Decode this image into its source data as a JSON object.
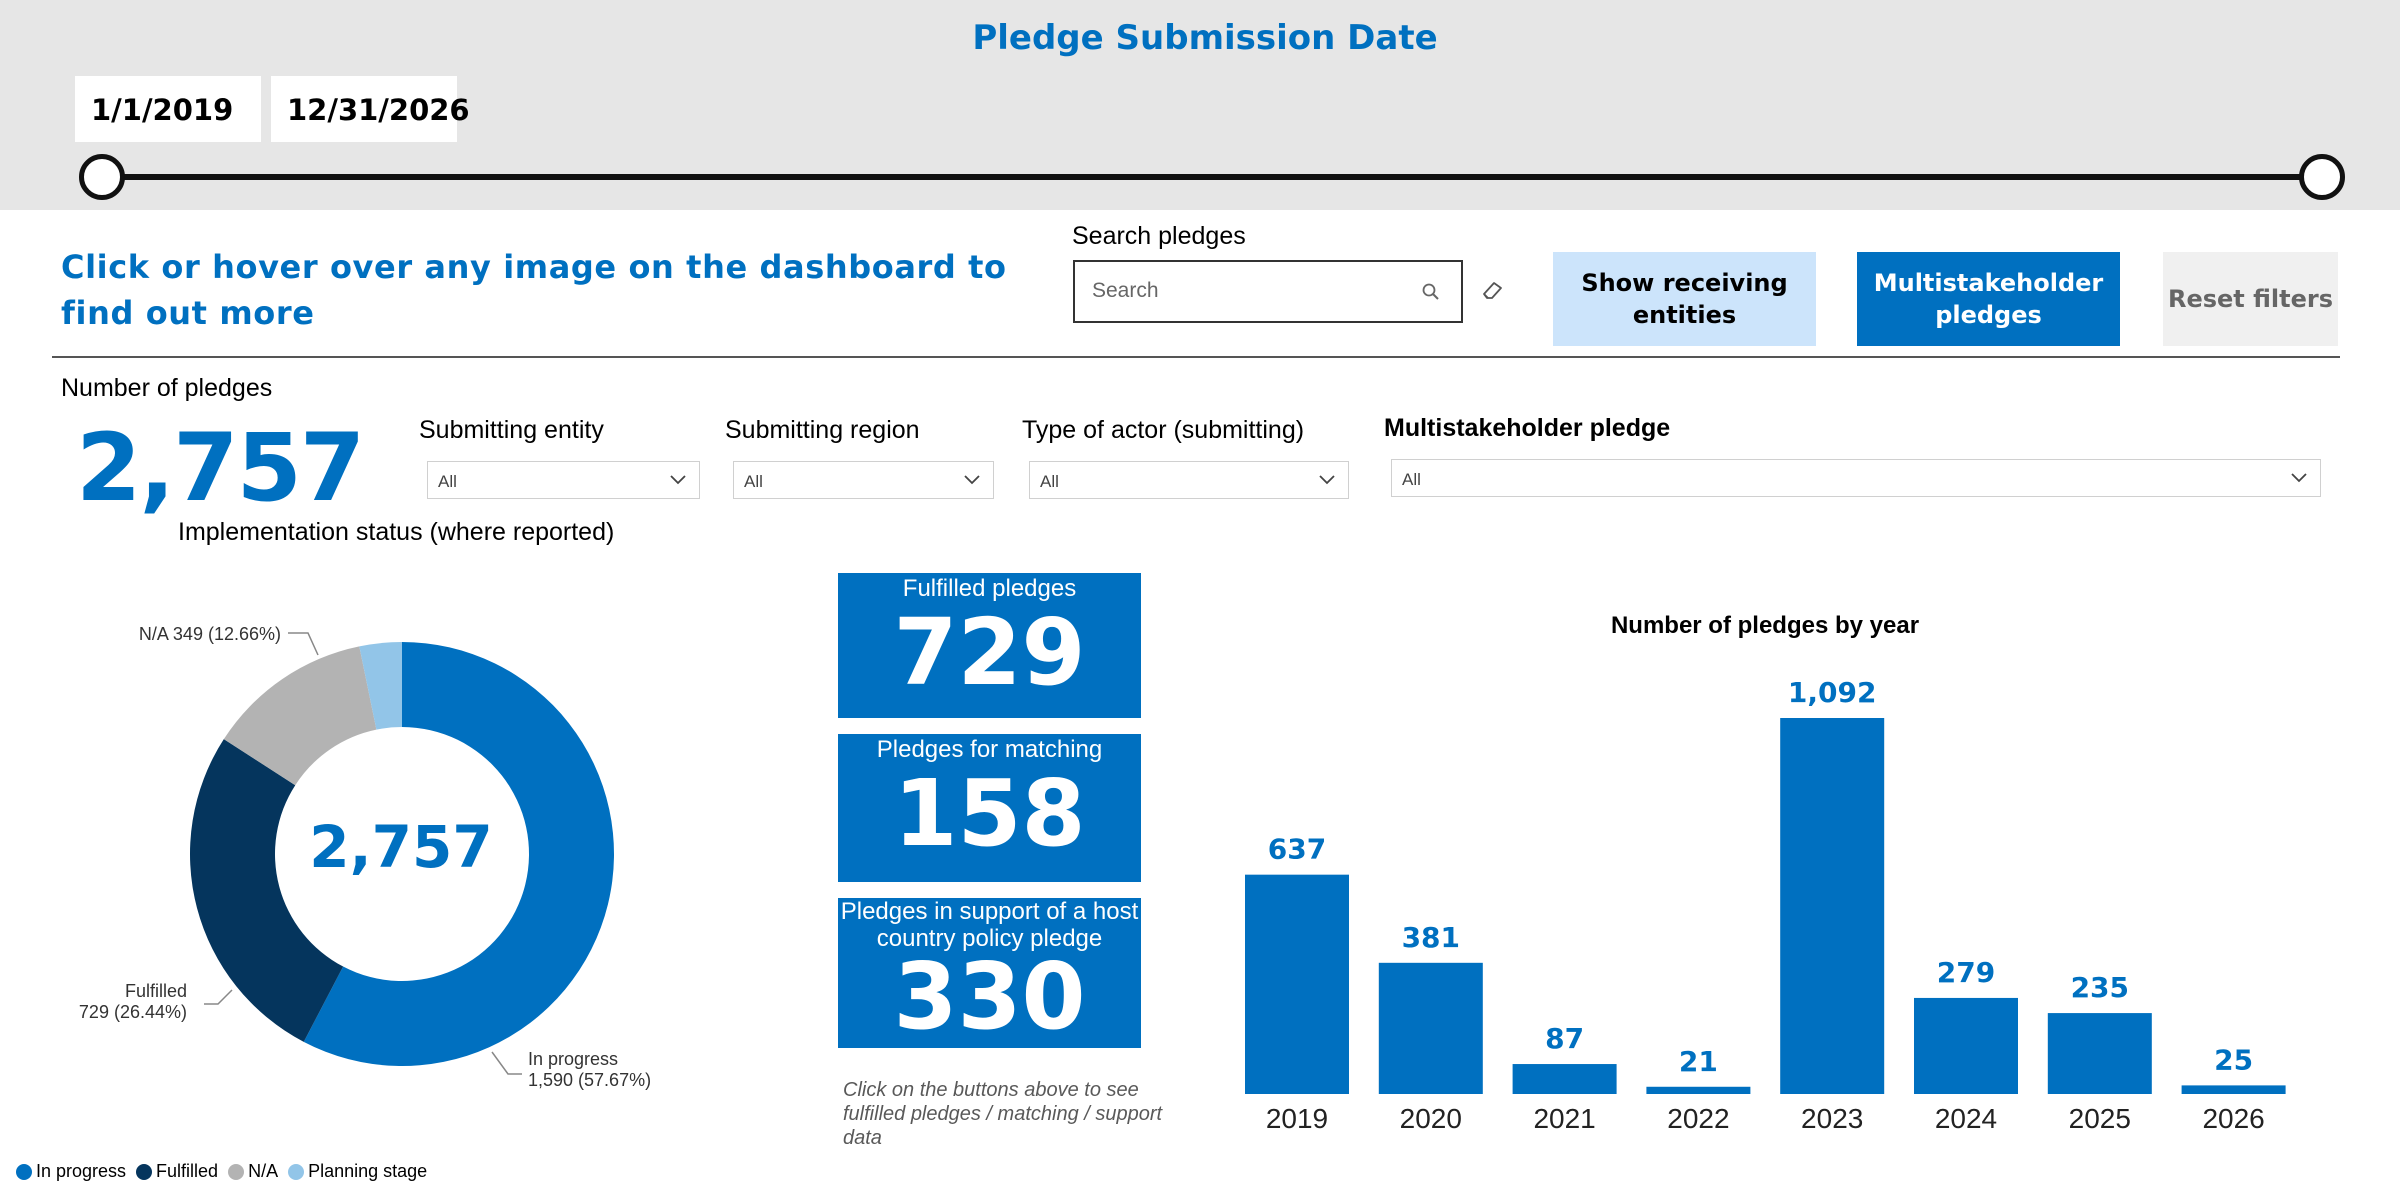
{
  "date_filter": {
    "title": "Pledge Submission Date",
    "start": "1/1/2019",
    "end": "12/31/2026",
    "range_position": [
      0,
      1
    ]
  },
  "header": {
    "hint": "Click or hover over any image on the dashboard to find out more",
    "search_label": "Search pledges",
    "search_placeholder": "Search",
    "buttons": {
      "show_receiving": "Show receiving entities",
      "multistakeholder": "Multistakeholder pledges",
      "reset": "Reset filters"
    }
  },
  "kpi": {
    "label": "Number of pledges",
    "value": "2,757"
  },
  "filters": [
    {
      "label": "Submitting entity",
      "value": "All"
    },
    {
      "label": "Submitting region",
      "value": "All"
    },
    {
      "label": "Type of actor (submitting)",
      "value": "All"
    },
    {
      "label": "Multistakeholder pledge",
      "value": "All"
    }
  ],
  "implementation": {
    "title": "Implementation status (where reported)",
    "center_label": "2,757",
    "labels": {
      "na": "N/A 349 (12.66%)",
      "fulfilled_name": "Fulfilled",
      "fulfilled_value": "729 (26.44%)",
      "inprogress_name": "In progress",
      "inprogress_value": "1,590 (57.67%)"
    },
    "legend": [
      {
        "name": "In progress",
        "color": "#0070c0"
      },
      {
        "name": "Fulfilled",
        "color": "#05355d"
      },
      {
        "name": "N/A",
        "color": "#b3b3b3"
      },
      {
        "name": "Planning stage",
        "color": "#92c5e8"
      }
    ]
  },
  "cards": [
    {
      "title": "Fulfilled pledges",
      "value": "729"
    },
    {
      "title": "Pledges for matching",
      "value": "158"
    },
    {
      "title": "Pledges in support of a host country policy pledge",
      "value": "330"
    }
  ],
  "card_note": "Click on the buttons above to see fulfilled pledges / matching / support data",
  "chart_data": [
    {
      "type": "pie",
      "title": "Implementation status (where reported)",
      "categories": [
        "In progress",
        "Fulfilled",
        "N/A",
        "Planning stage"
      ],
      "values": [
        1590,
        729,
        349,
        89
      ],
      "total": 2757,
      "colors": [
        "#0070c0",
        "#05355d",
        "#b3b3b3",
        "#92c5e8"
      ],
      "legend_position": "bottom-left"
    },
    {
      "type": "bar",
      "title": "Number of pledges by year",
      "categories": [
        "2019",
        "2020",
        "2021",
        "2022",
        "2023",
        "2024",
        "2025",
        "2026"
      ],
      "values": [
        637,
        381,
        87,
        21,
        1092,
        279,
        235,
        25
      ],
      "data_labels": [
        "637",
        "381",
        "87",
        "21",
        "1,092",
        "279",
        "235",
        "25"
      ],
      "ylim": [
        0,
        1092
      ],
      "color": "#0070c0",
      "grid": false
    }
  ]
}
